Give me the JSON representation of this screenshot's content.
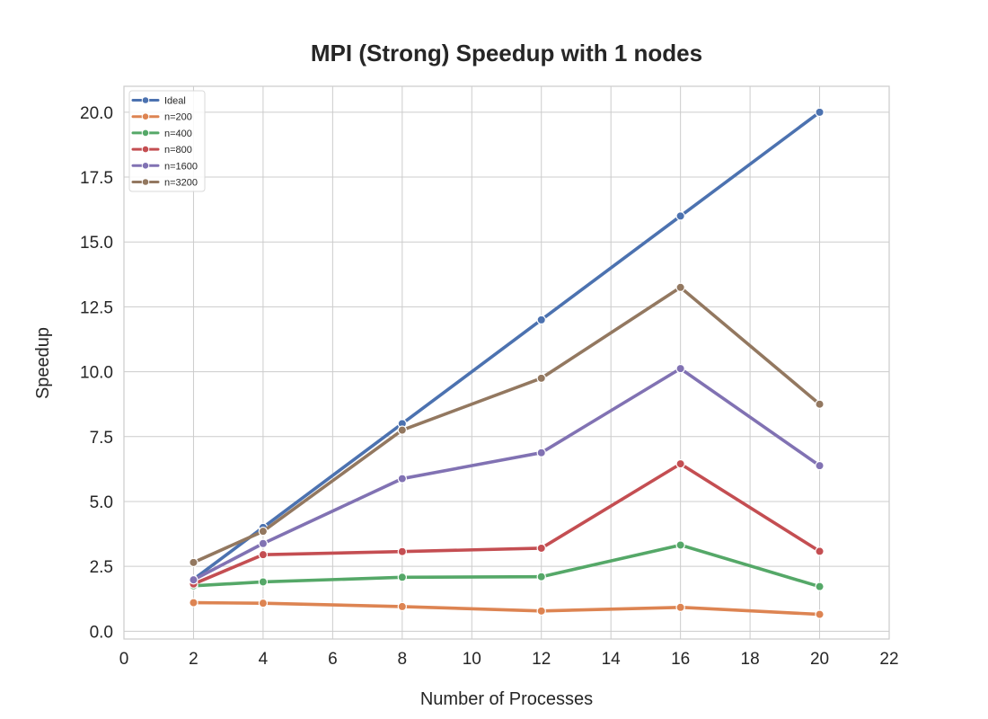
{
  "chart_data": {
    "type": "line",
    "title": "MPI (Strong) Speedup with 1 nodes",
    "xlabel": "Number of Processes",
    "ylabel": "Speedup",
    "xlim": [
      0,
      22
    ],
    "ylim": [
      -0.3,
      21.0
    ],
    "xticks": [
      0,
      2,
      4,
      6,
      8,
      10,
      12,
      14,
      16,
      18,
      20,
      22
    ],
    "yticks": [
      0.0,
      2.5,
      5.0,
      7.5,
      10.0,
      12.5,
      15.0,
      17.5,
      20.0
    ],
    "ytick_labels": [
      "0.0",
      "2.5",
      "5.0",
      "7.5",
      "10.0",
      "12.5",
      "15.0",
      "17.5",
      "20.0"
    ],
    "grid": true,
    "legend_position": "top-left",
    "x": [
      2,
      4,
      8,
      12,
      16,
      20
    ],
    "series": [
      {
        "name": "Ideal",
        "color": "#4c72b0",
        "values": [
          2,
          4,
          8,
          12,
          16,
          20
        ]
      },
      {
        "name": "n=200",
        "color": "#dd8452",
        "values": [
          1.1,
          1.08,
          0.95,
          0.78,
          0.92,
          0.65
        ]
      },
      {
        "name": "n=400",
        "color": "#55a868",
        "values": [
          1.75,
          1.9,
          2.08,
          2.1,
          3.32,
          1.72
        ]
      },
      {
        "name": "n=800",
        "color": "#c44e52",
        "values": [
          1.82,
          2.95,
          3.07,
          3.2,
          6.45,
          3.08
        ]
      },
      {
        "name": "n=1600",
        "color": "#8172b3",
        "values": [
          1.98,
          3.38,
          5.88,
          6.88,
          10.12,
          6.38
        ]
      },
      {
        "name": "n=3200",
        "color": "#937860",
        "values": [
          2.65,
          3.85,
          7.75,
          9.75,
          13.25,
          8.75
        ]
      }
    ]
  }
}
